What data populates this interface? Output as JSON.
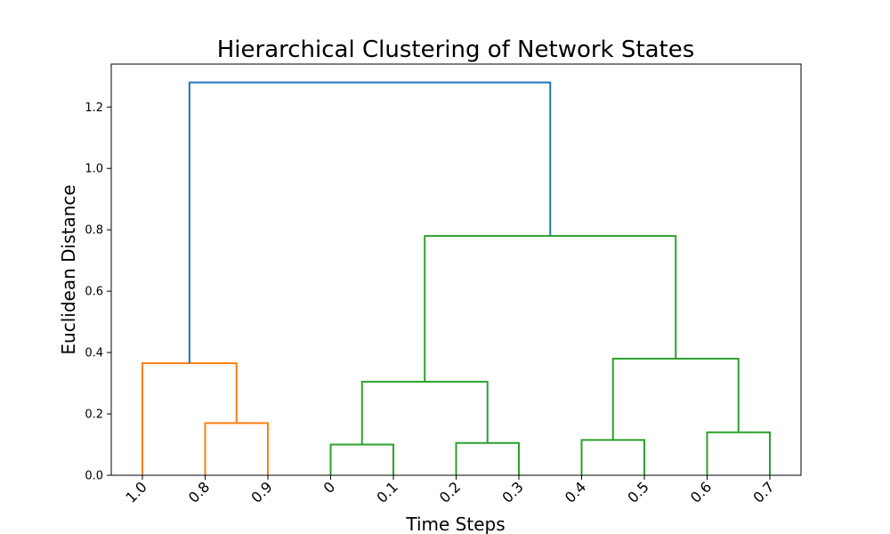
{
  "chart_data": {
    "type": "dendrogram",
    "title": "Hierarchical Clustering of Network States",
    "xlabel": "Time Steps",
    "ylabel": "Euclidean Distance",
    "ylim": [
      0,
      1.34
    ],
    "yticks": [
      0.0,
      0.2,
      0.4,
      0.6,
      0.8,
      1.0,
      1.2
    ],
    "ytick_labels": [
      "0.0",
      "0.2",
      "0.4",
      "0.6",
      "0.8",
      "1.0",
      "1.2"
    ],
    "leaves": [
      "1.0",
      "0.8",
      "0.9",
      "0",
      "0.1",
      "0.2",
      "0.3",
      "0.4",
      "0.5",
      "0.6",
      "0.7"
    ],
    "colors": {
      "root": "#1f77b4",
      "cluster_1": "#ff7f0e",
      "cluster_2": "#2ca02c"
    },
    "merges": [
      {
        "left_leaf": 1,
        "right_leaf": 2,
        "height": 0.17,
        "color": "cluster_1"
      },
      {
        "left_leaf": 0,
        "right_node": 0,
        "height": 0.365,
        "color": "cluster_1"
      },
      {
        "left_leaf": 3,
        "right_leaf": 4,
        "height": 0.1,
        "color": "cluster_2"
      },
      {
        "left_leaf": 5,
        "right_leaf": 6,
        "height": 0.105,
        "color": "cluster_2"
      },
      {
        "left_leaf": 7,
        "right_leaf": 8,
        "height": 0.115,
        "color": "cluster_2"
      },
      {
        "left_leaf": 9,
        "right_leaf": 10,
        "height": 0.14,
        "color": "cluster_2"
      },
      {
        "left_node": 2,
        "right_node": 3,
        "height": 0.305,
        "color": "cluster_2"
      },
      {
        "left_node": 4,
        "right_node": 5,
        "height": 0.38,
        "color": "cluster_2"
      },
      {
        "left_node": 6,
        "right_node": 7,
        "height": 0.78,
        "color": "cluster_2"
      },
      {
        "left_node": 1,
        "right_node": 8,
        "height": 1.28,
        "color": "root"
      }
    ]
  }
}
